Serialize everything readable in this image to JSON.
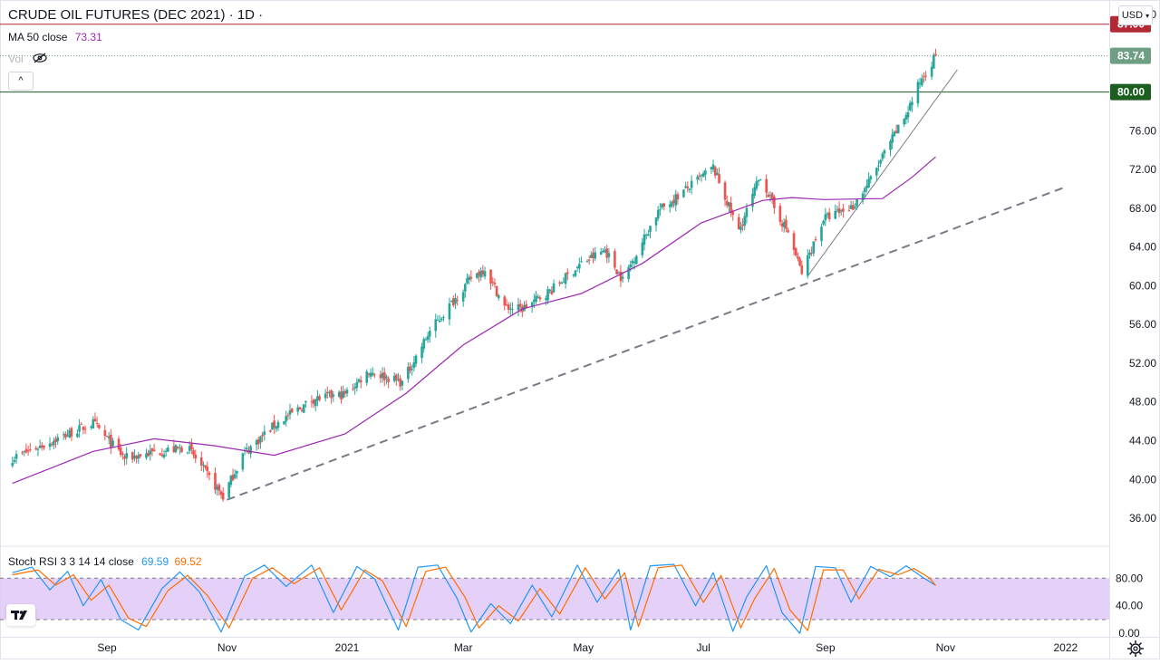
{
  "header": {
    "title": "CRUDE OIL FUTURES (DEC 2021) · 1D ·",
    "ma_label": "MA 50 close",
    "ma_value": "73.31",
    "vol_label": "Vol",
    "collapse_glyph": "^"
  },
  "currency_button": "USD",
  "colors": {
    "up": "#26a69a",
    "down": "#ef5350",
    "ma": "#9c27b0",
    "resistance": "#b22833",
    "support": "#1b5e20",
    "last_price": "#6e9e83",
    "trendline": "#787b86",
    "stoch_k": "#2196f3",
    "stoch_d": "#ff6d00",
    "stoch_band": "#e1c8f7"
  },
  "chart_data": [
    {
      "type": "candlestick",
      "x_axis": {
        "tick_labels": [
          "Sep",
          "Nov",
          "2021",
          "Mar",
          "May",
          "Jul",
          "Sep",
          "Nov",
          "2022"
        ]
      },
      "y_axis": {
        "range": [
          33.2,
          89.5
        ],
        "ticks": [
          88.0,
          76.0,
          72.0,
          68.0,
          64.0,
          60.0,
          56.0,
          52.0,
          48.0,
          44.0,
          40.0,
          36.0
        ]
      },
      "price_labels": {
        "resistance": "87.00",
        "last": "83.74",
        "support": "80.00"
      },
      "levels": {
        "resistance": 87.0,
        "last": 83.74,
        "support": 80.0
      },
      "price_anchors": [
        [
          "2020-07-15",
          42.2
        ],
        [
          "2020-08-25",
          45.8
        ],
        [
          "2020-09-10",
          42.2
        ],
        [
          "2020-09-25",
          42.8
        ],
        [
          "2020-10-12",
          43.3
        ],
        [
          "2020-10-30",
          38.2
        ],
        [
          "2020-11-09",
          42.6
        ],
        [
          "2020-11-25",
          45.6
        ],
        [
          "2020-12-15",
          48.3
        ],
        [
          "2020-12-31",
          48.8
        ],
        [
          "2021-01-12",
          51.2
        ],
        [
          "2021-01-29",
          50.0
        ],
        [
          "2021-02-12",
          55.3
        ],
        [
          "2021-03-05",
          60.8
        ],
        [
          "2021-03-12",
          61.8
        ],
        [
          "2021-03-22",
          57.8
        ],
        [
          "2021-03-31",
          57.6
        ],
        [
          "2021-04-15",
          59.6
        ],
        [
          "2021-04-30",
          62.3
        ],
        [
          "2021-05-12",
          63.7
        ],
        [
          "2021-05-21",
          60.6
        ],
        [
          "2021-06-08",
          67.7
        ],
        [
          "2021-06-25",
          70.4
        ],
        [
          "2021-07-06",
          72.2
        ],
        [
          "2021-07-19",
          65.6
        ],
        [
          "2021-07-30",
          71.4
        ],
        [
          "2021-08-06",
          68.0
        ],
        [
          "2021-08-13",
          65.5
        ],
        [
          "2021-08-20",
          61.3
        ],
        [
          "2021-08-31",
          66.9
        ],
        [
          "2021-09-15",
          68.2
        ],
        [
          "2021-09-24",
          71.0
        ],
        [
          "2021-10-04",
          74.8
        ],
        [
          "2021-10-12",
          77.7
        ],
        [
          "2021-10-20",
          81.5
        ],
        [
          "2021-10-27",
          83.74
        ]
      ],
      "moving_average": {
        "label": "MA 50 close",
        "points": [
          [
            "2020-07-15",
            39.6
          ],
          [
            "2020-08-25",
            42.9
          ],
          [
            "2020-09-25",
            44.2
          ],
          [
            "2020-10-25",
            43.5
          ],
          [
            "2020-11-25",
            42.5
          ],
          [
            "2020-12-31",
            44.7
          ],
          [
            "2021-01-31",
            48.9
          ],
          [
            "2021-03-01",
            53.9
          ],
          [
            "2021-03-31",
            57.6
          ],
          [
            "2021-04-30",
            59.2
          ],
          [
            "2021-05-31",
            62.3
          ],
          [
            "2021-06-30",
            66.5
          ],
          [
            "2021-07-31",
            68.8
          ],
          [
            "2021-08-15",
            69.1
          ],
          [
            "2021-08-31",
            68.9
          ],
          [
            "2021-09-30",
            69.0
          ],
          [
            "2021-10-15",
            71.2
          ],
          [
            "2021-10-27",
            73.31
          ]
        ]
      },
      "trendlines": [
        {
          "style": "dashed",
          "from": [
            "2020-11-01",
            37.9
          ],
          "to": [
            "2022-01-01",
            70.2
          ]
        },
        {
          "style": "solid",
          "from": [
            "2021-08-23",
            61.0
          ],
          "to": [
            "2021-11-07",
            82.3
          ]
        }
      ]
    },
    {
      "type": "line",
      "title": "Stoch RSI 3 3 14 14 close",
      "values_shown": {
        "k": "69.59",
        "d": "69.52"
      },
      "y_axis": {
        "range": [
          -5,
          125
        ],
        "ticks": [
          80.0,
          40.0,
          0.0
        ],
        "band": [
          20,
          80
        ]
      },
      "series": [
        {
          "name": "K",
          "color": "#2196f3",
          "points": [
            [
              "2020-07-15",
              88
            ],
            [
              "2020-07-25",
              96
            ],
            [
              "2020-08-03",
              63
            ],
            [
              "2020-08-12",
              90
            ],
            [
              "2020-08-20",
              40
            ],
            [
              "2020-08-29",
              78
            ],
            [
              "2020-09-08",
              20
            ],
            [
              "2020-09-17",
              5
            ],
            [
              "2020-09-29",
              65
            ],
            [
              "2020-10-08",
              89
            ],
            [
              "2020-10-18",
              60
            ],
            [
              "2020-10-29",
              2
            ],
            [
              "2020-11-10",
              83
            ],
            [
              "2020-11-20",
              99
            ],
            [
              "2020-12-01",
              68
            ],
            [
              "2020-12-14",
              99
            ],
            [
              "2020-12-25",
              30
            ],
            [
              "2021-01-06",
              97
            ],
            [
              "2021-01-15",
              79
            ],
            [
              "2021-01-27",
              5
            ],
            [
              "2021-02-06",
              96
            ],
            [
              "2021-02-16",
              99
            ],
            [
              "2021-02-26",
              50
            ],
            [
              "2021-03-05",
              2
            ],
            [
              "2021-03-15",
              43
            ],
            [
              "2021-03-25",
              14
            ],
            [
              "2021-04-05",
              70
            ],
            [
              "2021-04-15",
              24
            ],
            [
              "2021-04-28",
              99
            ],
            [
              "2021-05-08",
              45
            ],
            [
              "2021-05-19",
              93
            ],
            [
              "2021-05-25",
              5
            ],
            [
              "2021-06-04",
              98
            ],
            [
              "2021-06-16",
              100
            ],
            [
              "2021-06-27",
              40
            ],
            [
              "2021-07-06",
              88
            ],
            [
              "2021-07-16",
              3
            ],
            [
              "2021-07-23",
              53
            ],
            [
              "2021-08-02",
              98
            ],
            [
              "2021-08-10",
              30
            ],
            [
              "2021-08-19",
              0
            ],
            [
              "2021-08-27",
              97
            ],
            [
              "2021-09-06",
              95
            ],
            [
              "2021-09-14",
              45
            ],
            [
              "2021-09-24",
              97
            ],
            [
              "2021-10-04",
              82
            ],
            [
              "2021-10-12",
              98
            ],
            [
              "2021-10-20",
              82
            ],
            [
              "2021-10-27",
              69.59
            ]
          ]
        },
        {
          "name": "D",
          "color": "#ff6d00",
          "points": [
            [
              "2020-07-15",
              85
            ],
            [
              "2020-07-28",
              92
            ],
            [
              "2020-08-06",
              70
            ],
            [
              "2020-08-15",
              85
            ],
            [
              "2020-08-24",
              48
            ],
            [
              "2020-09-02",
              70
            ],
            [
              "2020-09-12",
              22
            ],
            [
              "2020-09-21",
              10
            ],
            [
              "2020-10-02",
              62
            ],
            [
              "2020-10-12",
              84
            ],
            [
              "2020-10-22",
              55
            ],
            [
              "2020-11-02",
              8
            ],
            [
              "2020-11-14",
              80
            ],
            [
              "2020-11-24",
              95
            ],
            [
              "2020-12-05",
              72
            ],
            [
              "2020-12-18",
              95
            ],
            [
              "2020-12-29",
              34
            ],
            [
              "2021-01-10",
              92
            ],
            [
              "2021-01-19",
              76
            ],
            [
              "2021-01-31",
              10
            ],
            [
              "2021-02-10",
              90
            ],
            [
              "2021-02-20",
              96
            ],
            [
              "2021-03-02",
              52
            ],
            [
              "2021-03-09",
              8
            ],
            [
              "2021-03-19",
              40
            ],
            [
              "2021-03-29",
              18
            ],
            [
              "2021-04-09",
              65
            ],
            [
              "2021-04-19",
              28
            ],
            [
              "2021-05-02",
              95
            ],
            [
              "2021-05-12",
              50
            ],
            [
              "2021-05-22",
              88
            ],
            [
              "2021-05-29",
              10
            ],
            [
              "2021-06-08",
              95
            ],
            [
              "2021-06-20",
              99
            ],
            [
              "2021-07-01",
              45
            ],
            [
              "2021-07-10",
              84
            ],
            [
              "2021-07-20",
              8
            ],
            [
              "2021-07-27",
              50
            ],
            [
              "2021-08-06",
              94
            ],
            [
              "2021-08-14",
              34
            ],
            [
              "2021-08-23",
              4
            ],
            [
              "2021-08-31",
              92
            ],
            [
              "2021-09-10",
              92
            ],
            [
              "2021-09-18",
              50
            ],
            [
              "2021-09-28",
              93
            ],
            [
              "2021-10-08",
              85
            ],
            [
              "2021-10-16",
              94
            ],
            [
              "2021-10-24",
              80
            ],
            [
              "2021-10-27",
              69.52
            ]
          ]
        }
      ]
    }
  ]
}
